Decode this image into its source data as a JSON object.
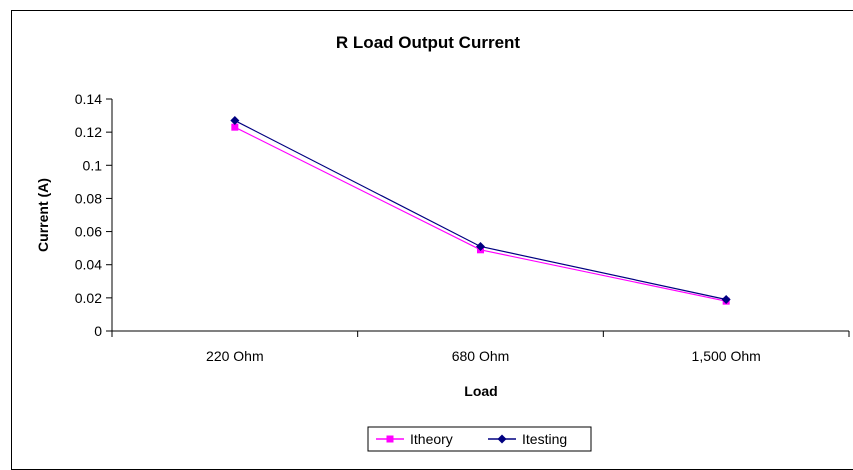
{
  "chart_data": {
    "type": "line",
    "title": "R Load Output Current",
    "xlabel": "Load",
    "ylabel": "Current (A)",
    "categories": [
      "220 Ohm",
      "680 Ohm",
      "1,500 Ohm"
    ],
    "ylim": [
      0,
      0.14
    ],
    "yticks": [
      0,
      0.02,
      0.04,
      0.06,
      0.08,
      0.1,
      0.12,
      0.14
    ],
    "ytick_labels": [
      "0",
      "0.02",
      "0.04",
      "0.06",
      "0.08",
      "0.1",
      "0.12",
      "0.14"
    ],
    "grid": false,
    "legend_position": "bottom",
    "series": [
      {
        "name": "Itheory",
        "values": [
          0.123,
          0.049,
          0.018
        ],
        "color": "#ff00ff",
        "marker": "square"
      },
      {
        "name": "Itesting",
        "values": [
          0.127,
          0.051,
          0.019
        ],
        "color": "#000080",
        "marker": "diamond"
      }
    ]
  }
}
